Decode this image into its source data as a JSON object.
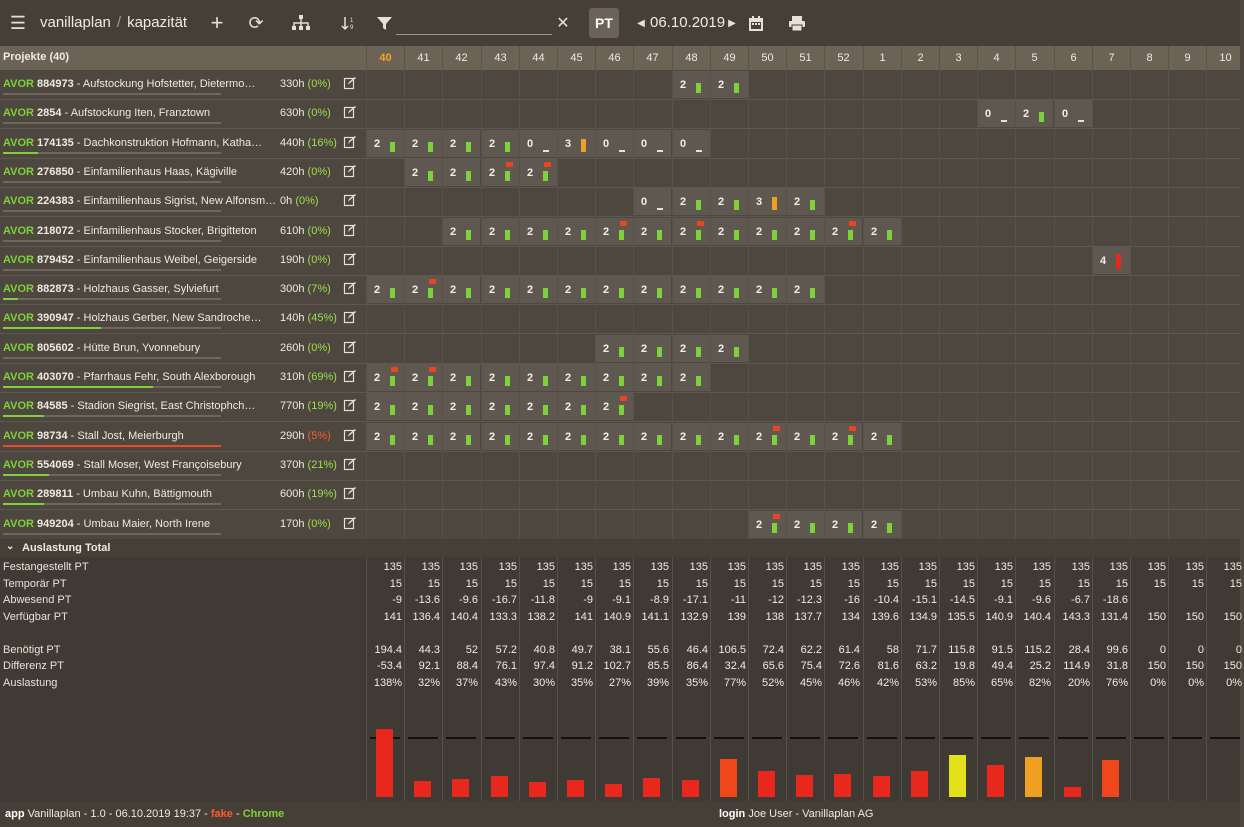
{
  "header": {
    "app_name": "vanillaplan",
    "page": "kapazität",
    "date": "06.10.2019",
    "pt_label": "PT",
    "filter_value": ""
  },
  "grid": {
    "projects_title": "Projekte (40)",
    "weeks": [
      "40",
      "41",
      "42",
      "43",
      "44",
      "45",
      "46",
      "47",
      "48",
      "49",
      "50",
      "51",
      "52",
      "1",
      "2",
      "3",
      "4",
      "5",
      "6",
      "7",
      "8",
      "9",
      "10"
    ],
    "current_week": "40"
  },
  "colors": {
    "ok": "#7fd13a",
    "warn": "#f0a020",
    "over": "#e8281c",
    "flag": "#e8461f"
  },
  "projects": [
    {
      "type": "AVOR",
      "id": "884973",
      "name": "Aufstockung Hofstetter, Dietermo…",
      "hours": "330h",
      "pct": "(0%)",
      "progress": 0,
      "bad": false,
      "cells": [
        {
          "w": 8,
          "v": "2",
          "c": "ok"
        },
        {
          "w": 9,
          "v": "2",
          "c": "ok"
        }
      ]
    },
    {
      "type": "AVOR",
      "id": "2854",
      "name": "Aufstockung Iten, Franztown",
      "hours": "630h",
      "pct": "(0%)",
      "progress": 0,
      "bad": false,
      "cells": [
        {
          "w": 16,
          "v": "0",
          "c": "zero"
        },
        {
          "w": 17,
          "v": "2",
          "c": "ok"
        },
        {
          "w": 18,
          "v": "0",
          "c": "zero"
        }
      ]
    },
    {
      "type": "AVOR",
      "id": "174135",
      "name": "Dachkonstruktion Hofmann, Katha…",
      "hours": "440h",
      "pct": "(16%)",
      "progress": 16,
      "bad": false,
      "cells": [
        {
          "w": 0,
          "v": "2",
          "c": "ok"
        },
        {
          "w": 1,
          "v": "2",
          "c": "ok"
        },
        {
          "w": 2,
          "v": "2",
          "c": "ok"
        },
        {
          "w": 3,
          "v": "2",
          "c": "ok"
        },
        {
          "w": 4,
          "v": "0",
          "c": "zero"
        },
        {
          "w": 5,
          "v": "3",
          "c": "warn"
        },
        {
          "w": 6,
          "v": "0",
          "c": "zero"
        },
        {
          "w": 7,
          "v": "0",
          "c": "zero"
        },
        {
          "w": 8,
          "v": "0",
          "c": "zero"
        }
      ]
    },
    {
      "type": "AVOR",
      "id": "276850",
      "name": "Einfamilienhaus Haas, Kägiville",
      "hours": "420h",
      "pct": "(0%)",
      "progress": 0,
      "bad": false,
      "cells": [
        {
          "w": 1,
          "v": "2",
          "c": "ok"
        },
        {
          "w": 2,
          "v": "2",
          "c": "ok"
        },
        {
          "w": 3,
          "v": "2",
          "c": "ok",
          "flag": true
        },
        {
          "w": 4,
          "v": "2",
          "c": "ok",
          "flag": true
        }
      ]
    },
    {
      "type": "AVOR",
      "id": "224383",
      "name": "Einfamilienhaus Sigrist, New Alfonsm…",
      "hours": "0h",
      "pct": "(0%)",
      "progress": 0,
      "bad": false,
      "cells": [
        {
          "w": 7,
          "v": "0",
          "c": "zero"
        },
        {
          "w": 8,
          "v": "2",
          "c": "ok"
        },
        {
          "w": 9,
          "v": "2",
          "c": "ok"
        },
        {
          "w": 10,
          "v": "3",
          "c": "warn"
        },
        {
          "w": 11,
          "v": "2",
          "c": "ok"
        }
      ]
    },
    {
      "type": "AVOR",
      "id": "218072",
      "name": "Einfamilienhaus Stocker, Brigitteton",
      "hours": "610h",
      "pct": "(0%)",
      "progress": 0,
      "bad": false,
      "cells": [
        {
          "w": 2,
          "v": "2",
          "c": "ok"
        },
        {
          "w": 3,
          "v": "2",
          "c": "ok"
        },
        {
          "w": 4,
          "v": "2",
          "c": "ok"
        },
        {
          "w": 5,
          "v": "2",
          "c": "ok"
        },
        {
          "w": 6,
          "v": "2",
          "c": "ok",
          "flag": true
        },
        {
          "w": 7,
          "v": "2",
          "c": "ok"
        },
        {
          "w": 8,
          "v": "2",
          "c": "ok",
          "flag": true
        },
        {
          "w": 9,
          "v": "2",
          "c": "ok"
        },
        {
          "w": 10,
          "v": "2",
          "c": "ok"
        },
        {
          "w": 11,
          "v": "2",
          "c": "ok"
        },
        {
          "w": 12,
          "v": "2",
          "c": "ok",
          "flag": true
        },
        {
          "w": 13,
          "v": "2",
          "c": "ok"
        }
      ]
    },
    {
      "type": "AVOR",
      "id": "879452",
      "name": "Einfamilienhaus Weibel, Geigerside",
      "hours": "190h",
      "pct": "(0%)",
      "progress": 0,
      "bad": false,
      "cells": [
        {
          "w": 19,
          "v": "4",
          "c": "over"
        }
      ]
    },
    {
      "type": "AVOR",
      "id": "882873",
      "name": "Holzhaus Gasser, Sylviefurt",
      "hours": "300h",
      "pct": "(7%)",
      "progress": 7,
      "bad": false,
      "cells": [
        {
          "w": 0,
          "v": "2",
          "c": "ok"
        },
        {
          "w": 1,
          "v": "2",
          "c": "ok",
          "flag": true
        },
        {
          "w": 2,
          "v": "2",
          "c": "ok"
        },
        {
          "w": 3,
          "v": "2",
          "c": "ok"
        },
        {
          "w": 4,
          "v": "2",
          "c": "ok"
        },
        {
          "w": 5,
          "v": "2",
          "c": "ok"
        },
        {
          "w": 6,
          "v": "2",
          "c": "ok"
        },
        {
          "w": 7,
          "v": "2",
          "c": "ok"
        },
        {
          "w": 8,
          "v": "2",
          "c": "ok"
        },
        {
          "w": 9,
          "v": "2",
          "c": "ok"
        },
        {
          "w": 10,
          "v": "2",
          "c": "ok"
        },
        {
          "w": 11,
          "v": "2",
          "c": "ok"
        }
      ]
    },
    {
      "type": "AVOR",
      "id": "390947",
      "name": "Holzhaus Gerber, New Sandroche…",
      "hours": "140h",
      "pct": "(45%)",
      "progress": 45,
      "bad": false,
      "cells": []
    },
    {
      "type": "AVOR",
      "id": "805602",
      "name": "Hütte Brun, Yvonnebury",
      "hours": "260h",
      "pct": "(0%)",
      "progress": 0,
      "bad": false,
      "cells": [
        {
          "w": 6,
          "v": "2",
          "c": "ok"
        },
        {
          "w": 7,
          "v": "2",
          "c": "ok"
        },
        {
          "w": 8,
          "v": "2",
          "c": "ok"
        },
        {
          "w": 9,
          "v": "2",
          "c": "ok"
        }
      ]
    },
    {
      "type": "AVOR",
      "id": "403070",
      "name": "Pfarrhaus Fehr, South Alexborough",
      "hours": "310h",
      "pct": "(69%)",
      "progress": 69,
      "bad": false,
      "cells": [
        {
          "w": 0,
          "v": "2",
          "c": "ok",
          "flag": true
        },
        {
          "w": 1,
          "v": "2",
          "c": "ok",
          "flag": true
        },
        {
          "w": 2,
          "v": "2",
          "c": "ok"
        },
        {
          "w": 3,
          "v": "2",
          "c": "ok"
        },
        {
          "w": 4,
          "v": "2",
          "c": "ok"
        },
        {
          "w": 5,
          "v": "2",
          "c": "ok"
        },
        {
          "w": 6,
          "v": "2",
          "c": "ok"
        },
        {
          "w": 7,
          "v": "2",
          "c": "ok"
        },
        {
          "w": 8,
          "v": "2",
          "c": "ok"
        }
      ]
    },
    {
      "type": "AVOR",
      "id": "84585",
      "name": "Stadion Siegrist, East Christophch…",
      "hours": "770h",
      "pct": "(19%)",
      "progress": 19,
      "bad": false,
      "cells": [
        {
          "w": 0,
          "v": "2",
          "c": "ok"
        },
        {
          "w": 1,
          "v": "2",
          "c": "ok"
        },
        {
          "w": 2,
          "v": "2",
          "c": "ok"
        },
        {
          "w": 3,
          "v": "2",
          "c": "ok"
        },
        {
          "w": 4,
          "v": "2",
          "c": "ok"
        },
        {
          "w": 5,
          "v": "2",
          "c": "ok"
        },
        {
          "w": 6,
          "v": "2",
          "c": "ok",
          "flag": true
        }
      ]
    },
    {
      "type": "AVOR",
      "id": "98734",
      "name": "Stall Jost, Meierburgh",
      "hours": "290h",
      "pct": "(5%)",
      "progress": 100,
      "bad": true,
      "cells": [
        {
          "w": 0,
          "v": "2",
          "c": "ok"
        },
        {
          "w": 1,
          "v": "2",
          "c": "ok"
        },
        {
          "w": 2,
          "v": "2",
          "c": "ok"
        },
        {
          "w": 3,
          "v": "2",
          "c": "ok"
        },
        {
          "w": 4,
          "v": "2",
          "c": "ok"
        },
        {
          "w": 5,
          "v": "2",
          "c": "ok"
        },
        {
          "w": 6,
          "v": "2",
          "c": "ok"
        },
        {
          "w": 7,
          "v": "2",
          "c": "ok"
        },
        {
          "w": 8,
          "v": "2",
          "c": "ok"
        },
        {
          "w": 9,
          "v": "2",
          "c": "ok"
        },
        {
          "w": 10,
          "v": "2",
          "c": "ok",
          "flag": true
        },
        {
          "w": 11,
          "v": "2",
          "c": "ok"
        },
        {
          "w": 12,
          "v": "2",
          "c": "ok",
          "flag": true
        },
        {
          "w": 13,
          "v": "2",
          "c": "ok"
        }
      ]
    },
    {
      "type": "AVOR",
      "id": "554069",
      "name": "Stall Moser, West Françoisebury",
      "hours": "370h",
      "pct": "(21%)",
      "progress": 21,
      "bad": false,
      "cells": []
    },
    {
      "type": "AVOR",
      "id": "289811",
      "name": "Umbau Kuhn, Bättigmouth",
      "hours": "600h",
      "pct": "(19%)",
      "progress": 19,
      "bad": false,
      "cells": []
    },
    {
      "type": "AVOR",
      "id": "949204",
      "name": "Umbau Maier, North Irene",
      "hours": "170h",
      "pct": "(0%)",
      "progress": 0,
      "bad": false,
      "cells": [
        {
          "w": 10,
          "v": "2",
          "c": "ok",
          "flag": true
        },
        {
          "w": 11,
          "v": "2",
          "c": "ok"
        },
        {
          "w": 12,
          "v": "2",
          "c": "ok"
        },
        {
          "w": 13,
          "v": "2",
          "c": "ok"
        }
      ]
    }
  ],
  "totals": {
    "title": "Auslastung Total",
    "rows": [
      {
        "label": "Festangestellt PT",
        "values": [
          "135",
          "135",
          "135",
          "135",
          "135",
          "135",
          "135",
          "135",
          "135",
          "135",
          "135",
          "135",
          "135",
          "135",
          "135",
          "135",
          "135",
          "135",
          "135",
          "135",
          "135",
          "135",
          "135"
        ]
      },
      {
        "label": "Temporär PT",
        "values": [
          "15",
          "15",
          "15",
          "15",
          "15",
          "15",
          "15",
          "15",
          "15",
          "15",
          "15",
          "15",
          "15",
          "15",
          "15",
          "15",
          "15",
          "15",
          "15",
          "15",
          "15",
          "15",
          "15"
        ]
      },
      {
        "label": "Abwesend PT",
        "values": [
          "-9",
          "-13.6",
          "-9.6",
          "-16.7",
          "-11.8",
          "-9",
          "-9.1",
          "-8.9",
          "-17.1",
          "-11",
          "-12",
          "-12.3",
          "-16",
          "-10.4",
          "-15.1",
          "-14.5",
          "-9.1",
          "-9.6",
          "-6.7",
          "-18.6",
          "",
          "",
          ""
        ]
      },
      {
        "label": "Verfügbar PT",
        "values": [
          "141",
          "136.4",
          "140.4",
          "133.3",
          "138.2",
          "141",
          "140.9",
          "141.1",
          "132.9",
          "139",
          "138",
          "137.7",
          "134",
          "139.6",
          "134.9",
          "135.5",
          "140.9",
          "140.4",
          "143.3",
          "131.4",
          "150",
          "150",
          "150"
        ]
      },
      {
        "label": "",
        "values": []
      },
      {
        "label": "Benötigt PT",
        "values": [
          "194.4",
          "44.3",
          "52",
          "57.2",
          "40.8",
          "49.7",
          "38.1",
          "55.6",
          "46.4",
          "106.5",
          "72.4",
          "62.2",
          "61.4",
          "58",
          "71.7",
          "115.8",
          "91.5",
          "115.2",
          "28.4",
          "99.6",
          "0",
          "0",
          "0"
        ]
      },
      {
        "label": "Differenz PT",
        "values": [
          "-53.4",
          "92.1",
          "88.4",
          "76.1",
          "97.4",
          "91.2",
          "102.7",
          "85.5",
          "86.4",
          "32.4",
          "65.6",
          "75.4",
          "72.6",
          "81.6",
          "63.2",
          "19.8",
          "49.4",
          "25.2",
          "114.9",
          "31.8",
          "150",
          "150",
          "150"
        ]
      },
      {
        "label": "Auslastung",
        "values": [
          "138%",
          "32%",
          "37%",
          "43%",
          "30%",
          "35%",
          "27%",
          "39%",
          "35%",
          "77%",
          "52%",
          "45%",
          "46%",
          "42%",
          "53%",
          "85%",
          "65%",
          "82%",
          "20%",
          "76%",
          "0%",
          "0%",
          "0%"
        ]
      }
    ],
    "utilization": [
      138,
      32,
      37,
      43,
      30,
      35,
      27,
      39,
      35,
      77,
      52,
      45,
      46,
      42,
      53,
      85,
      65,
      82,
      20,
      76,
      0,
      0,
      0
    ]
  },
  "footer": {
    "app_label": "app",
    "app_info": "Vanillaplan - 1.0 - 06.10.2019 19:37 -",
    "fake": "fake",
    "dash": "-",
    "browser": "Chrome",
    "login_label": "login",
    "login_info": "Joe User - Vanillaplan AG"
  }
}
